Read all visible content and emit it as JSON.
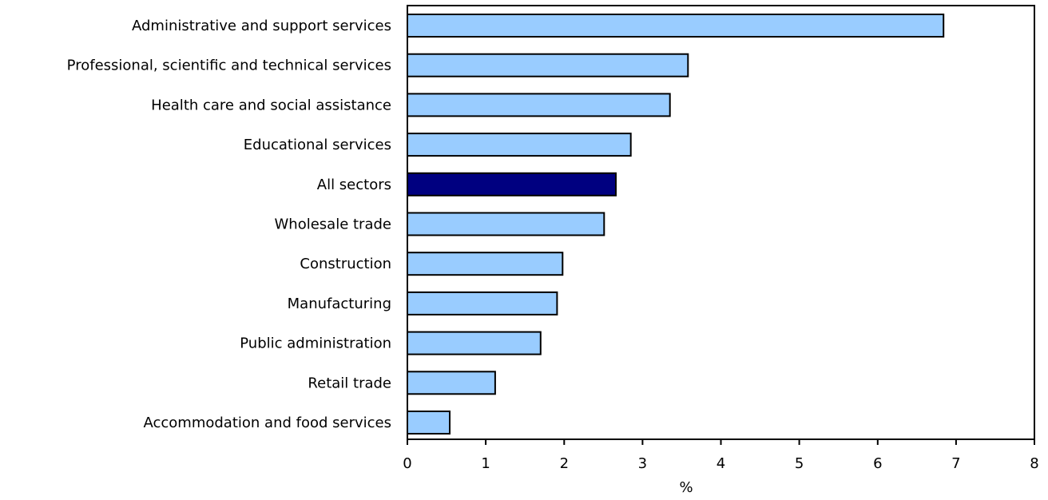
{
  "chart_data": {
    "type": "bar",
    "orientation": "horizontal",
    "categories": [
      "Administrative and support services",
      "Professional, scientific and technical services",
      "Health care and social assistance",
      "Educational services",
      "All sectors",
      "Wholesale trade",
      "Construction",
      "Manufacturing",
      "Public administration",
      "Retail trade",
      "Accommodation and food services"
    ],
    "values": [
      6.84,
      3.58,
      3.35,
      2.85,
      2.66,
      2.51,
      1.98,
      1.91,
      1.7,
      1.12,
      0.54
    ],
    "highlight": "All sectors",
    "xlabel": "%",
    "ylabel": "",
    "xlim": [
      0,
      8
    ],
    "xticks": [
      0,
      1,
      2,
      3,
      4,
      5,
      6,
      7,
      8
    ],
    "grid": false,
    "colors": {
      "bar": "#99ccff",
      "highlight": "#000080",
      "bar_edge": "#000000",
      "axis": "#000000"
    }
  }
}
